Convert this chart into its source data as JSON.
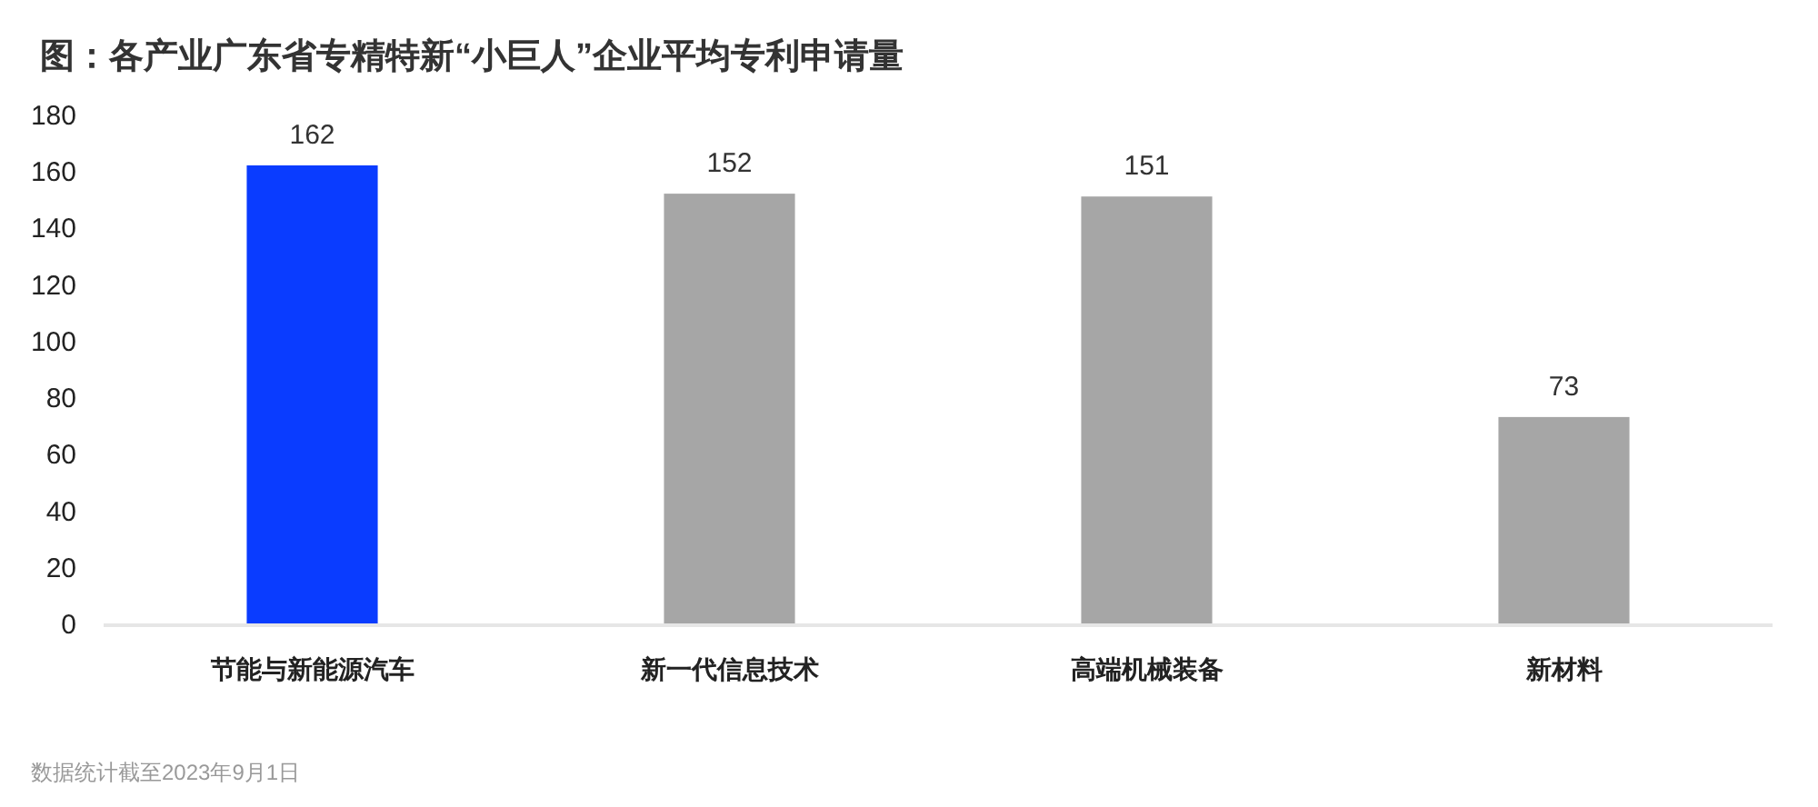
{
  "chart_data": {
    "type": "bar",
    "title": "图：各产业广东省专精特新“小巨人”企业平均专利申请量",
    "categories": [
      "节能与新能源汽车",
      "新一代信息技术",
      "高端机械装备",
      "新材料"
    ],
    "values": [
      162,
      152,
      151,
      73
    ],
    "colors": [
      "#0a3cff",
      "#a6a6a6",
      "#a6a6a6",
      "#a6a6a6"
    ],
    "ylim": [
      0,
      180
    ],
    "yticks": [
      0,
      20,
      40,
      60,
      80,
      100,
      120,
      140,
      160,
      180
    ],
    "data_labels": true,
    "annotations": [
      "数据统计截至2023年9月1日"
    ]
  }
}
